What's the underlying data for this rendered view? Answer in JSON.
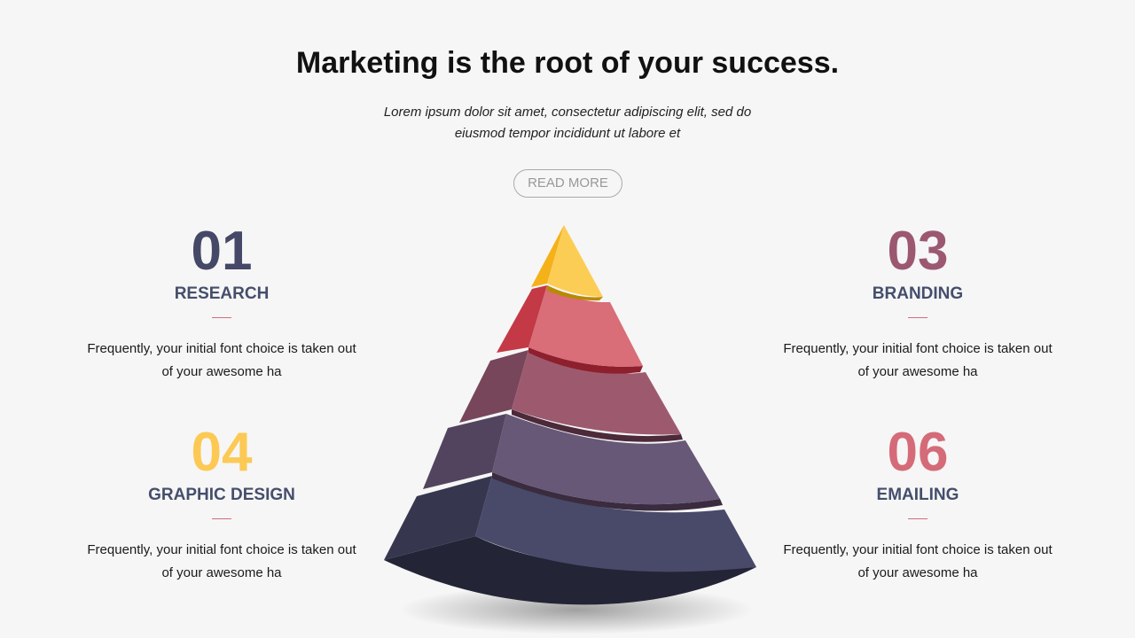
{
  "header": {
    "title": "Marketing is the root of your success.",
    "subtitle_line1": "Lorem ipsum dolor sit amet, consectetur adipiscing elit, sed do",
    "subtitle_line2": "eiusmod tempor incididunt ut labore et",
    "read_more": "READ MORE"
  },
  "items": [
    {
      "number": "01",
      "label": "RESEARCH",
      "text_line1": "Frequently, your initial font choice is taken out",
      "text_line2": "of your awesome ha",
      "color": "#454866"
    },
    {
      "number": "04",
      "label": "GRAPHIC DESIGN",
      "text_line1": "Frequently, your initial font choice is taken out",
      "text_line2": "of your awesome ha",
      "color": "#fcc954"
    },
    {
      "number": "03",
      "label": "BRANDING",
      "text_line1": "Frequently, your initial font choice is taken out",
      "text_line2": "of your awesome ha",
      "color": "#9b5870"
    },
    {
      "number": "06",
      "label": "EMAILING",
      "text_line1": "Frequently, your initial font choice is taken out",
      "text_line2": "of your awesome ha",
      "color": "#d56b78"
    }
  ],
  "pyramid_colors": [
    "#fccd55",
    "#d96d78",
    "#9d5a6f",
    "#675878",
    "#494a69"
  ]
}
